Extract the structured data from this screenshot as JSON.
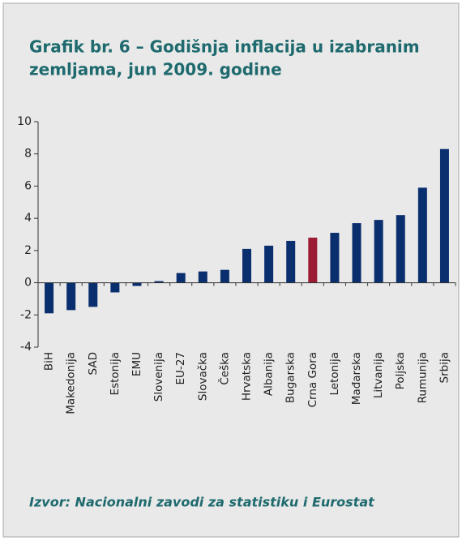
{
  "chart_data": {
    "type": "bar",
    "title_lines": [
      "Grafik br. 6 – Godišnja inflacija u izabranim",
      "zemljama, jun 2009. godine"
    ],
    "source": "Izvor: Nacionalni zavodi za statistiku i Eurostat",
    "categories": [
      "BiH",
      "Makedonija",
      "SAD",
      "Estonija",
      "EMU",
      "Slovenija",
      "EU-27",
      "Slovačka",
      "Češka",
      "Hrvatska",
      "Albanija",
      "Bugarska",
      "Crna Gora",
      "Letonija",
      "Mađarska",
      "Litvanija",
      "Poljska",
      "Rumunija",
      "Srbija"
    ],
    "values": [
      -1.9,
      -1.7,
      -1.5,
      -0.6,
      -0.2,
      0.1,
      0.6,
      0.7,
      0.8,
      2.1,
      2.3,
      2.6,
      2.8,
      3.1,
      3.7,
      3.9,
      4.2,
      5.9,
      8.3
    ],
    "colors": [
      "#0a2f6e",
      "#0a2f6e",
      "#0a2f6e",
      "#0a2f6e",
      "#0a2f6e",
      "#0a2f6e",
      "#0a2f6e",
      "#0a2f6e",
      "#0a2f6e",
      "#0a2f6e",
      "#0a2f6e",
      "#0a2f6e",
      "#9c1c35",
      "#0a2f6e",
      "#0a2f6e",
      "#0a2f6e",
      "#0a2f6e",
      "#0a2f6e",
      "#0a2f6e"
    ],
    "ylim": [
      -4,
      10
    ],
    "yticks": [
      -4,
      -2,
      0,
      2,
      4,
      6,
      8,
      10
    ]
  }
}
